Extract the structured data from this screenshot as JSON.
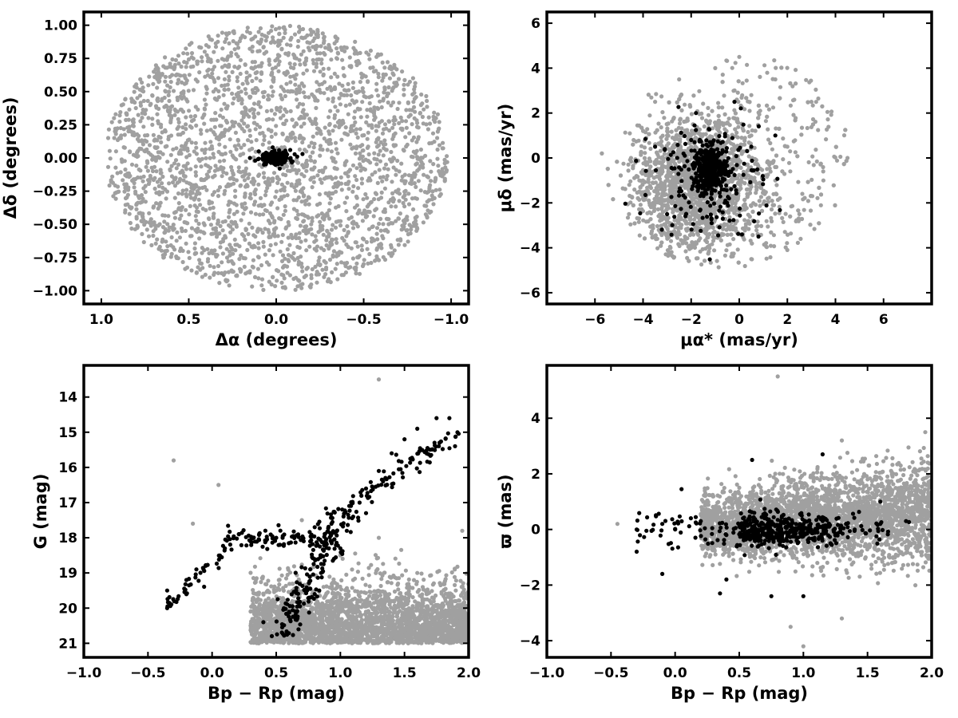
{
  "colors": {
    "field": "#a0a0a0",
    "members": "#000000",
    "frame": "#000000"
  },
  "chart_data": [
    {
      "id": "pos",
      "type": "scatter",
      "xlabel": "Δα (degrees)",
      "ylabel": "Δδ (degrees)",
      "xlim": [
        1.1,
        -1.1
      ],
      "ylim": [
        -1.1,
        1.1
      ],
      "xticks": [
        1.0,
        0.5,
        0.0,
        -0.5,
        -1.0
      ],
      "xtick_labels": [
        "1.0",
        "0.5",
        "0.0",
        "−0.5",
        "−1.0"
      ],
      "yticks": [
        1.0,
        0.75,
        0.5,
        0.25,
        0.0,
        -0.25,
        -0.5,
        -0.75,
        -1.0
      ],
      "ytick_labels": [
        "1.00",
        "0.75",
        "0.50",
        "0.25",
        "0.00",
        "−0.25",
        "−0.50",
        "−0.75",
        "−1.00"
      ],
      "series": [
        {
          "points": [
            [
              0.92,
              0.22
            ],
            [
              0.85,
              -0.35
            ],
            [
              0.7,
              0.65
            ],
            [
              0.55,
              -0.7
            ],
            [
              0.4,
              0.85
            ],
            [
              0.3,
              -0.88
            ],
            [
              0.1,
              0.95
            ],
            [
              -0.15,
              -0.95
            ],
            [
              -0.35,
              0.9
            ],
            [
              -0.5,
              -0.8
            ],
            [
              -0.65,
              0.6
            ],
            [
              -0.8,
              -0.5
            ],
            [
              -0.92,
              0.15
            ],
            [
              -0.95,
              -0.1
            ],
            [
              0.6,
              0.3
            ],
            [
              0.45,
              -0.25
            ],
            [
              0.2,
              0.5
            ],
            [
              -0.2,
              -0.5
            ],
            [
              -0.45,
              0.35
            ],
            [
              -0.6,
              -0.3
            ],
            [
              0.75,
              0.05
            ],
            [
              -0.75,
              0.1
            ],
            [
              0.15,
              -0.3
            ],
            [
              -0.3,
              0.2
            ]
          ]
        },
        {
          "points": [
            [
              0.0,
              0.0
            ],
            [
              0.05,
              0.02
            ],
            [
              -0.04,
              -0.03
            ],
            [
              0.1,
              0.05
            ],
            [
              -0.08,
              0.06
            ],
            [
              0.07,
              -0.05
            ],
            [
              0.12,
              -0.02
            ],
            [
              -0.12,
              0.01
            ],
            [
              0.02,
              0.08
            ],
            [
              -0.02,
              -0.08
            ],
            [
              0.15,
              0.0
            ],
            [
              -0.15,
              0.03
            ]
          ]
        }
      ]
    },
    {
      "id": "pm",
      "type": "scatter",
      "xlabel": "μα* (mas/yr)",
      "ylabel": "μδ (mas/yr)",
      "xlim": [
        -8,
        8
      ],
      "ylim": [
        -6.5,
        6.5
      ],
      "xticks": [
        -6,
        -4,
        -2,
        0,
        2,
        4,
        6
      ],
      "xtick_labels": [
        "−6",
        "−4",
        "−2",
        "0",
        "2",
        "4",
        "6"
      ],
      "yticks": [
        6,
        4,
        2,
        0,
        -2,
        -4,
        -6
      ],
      "ytick_labels": [
        "6",
        "4",
        "2",
        "0",
        "−2",
        "−4",
        "−6"
      ],
      "series": [
        {
          "points": [
            [
              -4.5,
              0.0
            ],
            [
              -4.0,
              -1.8
            ],
            [
              -3.5,
              2.5
            ],
            [
              -3.0,
              -3.5
            ],
            [
              -2.5,
              3.5
            ],
            [
              -2.0,
              -4.0
            ],
            [
              -1.0,
              4.0
            ],
            [
              0.0,
              4.5
            ],
            [
              0.5,
              -4.5
            ],
            [
              1.5,
              3.5
            ],
            [
              2.5,
              -2.5
            ],
            [
              3.0,
              2.5
            ],
            [
              3.5,
              -1.0
            ],
            [
              4.5,
              0.0
            ],
            [
              -2.0,
              0.5
            ],
            [
              0.5,
              1.0
            ],
            [
              1.5,
              -1.0
            ],
            [
              -3.0,
              1.0
            ],
            [
              2.0,
              0.5
            ],
            [
              -1.0,
              -2.5
            ]
          ]
        },
        {
          "points": [
            [
              -1.2,
              -0.5
            ],
            [
              -1.0,
              -0.3
            ],
            [
              -1.5,
              -0.7
            ],
            [
              -0.8,
              -0.6
            ],
            [
              -1.3,
              0.2
            ],
            [
              -1.1,
              -1.2
            ],
            [
              -2.0,
              0.8
            ],
            [
              -0.5,
              -2.0
            ],
            [
              -2.5,
              -1.5
            ],
            [
              0.5,
              0.5
            ],
            [
              -3.0,
              -2.5
            ],
            [
              1.5,
              1.0
            ],
            [
              -1.8,
              2.0
            ],
            [
              -0.2,
              2.5
            ],
            [
              -3.5,
              0.5
            ],
            [
              0.8,
              -3.5
            ]
          ]
        }
      ]
    },
    {
      "id": "cmd",
      "type": "scatter",
      "xlabel": "Bp − Rp (mag)",
      "ylabel": "G (mag)",
      "xlim": [
        -1.0,
        2.0
      ],
      "ylim": [
        21.4,
        13.1
      ],
      "xticks": [
        -1.0,
        -0.5,
        0.0,
        0.5,
        1.0,
        1.5,
        2.0
      ],
      "xtick_labels": [
        "−1.0",
        "−0.5",
        "0.0",
        "0.5",
        "1.0",
        "1.5",
        "2.0"
      ],
      "yticks": [
        21,
        20,
        19,
        18,
        17,
        16,
        15,
        14
      ],
      "ytick_labels": [
        "21",
        "20",
        "19",
        "18",
        "17",
        "16",
        "15",
        "14"
      ],
      "series": [
        {
          "points": [
            [
              0.6,
              20.5
            ],
            [
              0.9,
              20.0
            ],
            [
              1.2,
              20.6
            ],
            [
              1.5,
              20.3
            ],
            [
              1.8,
              20.5
            ],
            [
              1.9,
              19.5
            ],
            [
              1.4,
              19.8
            ],
            [
              1.1,
              19.2
            ],
            [
              0.8,
              18.8
            ],
            [
              0.5,
              19.5
            ],
            [
              0.3,
              20.5
            ],
            [
              1.6,
              19.0
            ],
            [
              1.0,
              18.5
            ],
            [
              0.7,
              17.5
            ],
            [
              1.3,
              13.5
            ],
            [
              -0.3,
              15.8
            ],
            [
              0.05,
              16.5
            ],
            [
              1.95,
              17.8
            ],
            [
              -0.15,
              17.6
            ],
            [
              1.3,
              18.0
            ]
          ]
        },
        {
          "points": [
            [
              0.4,
              20.4
            ],
            [
              0.6,
              20.1
            ],
            [
              0.8,
              19.6
            ],
            [
              0.85,
              19.0
            ],
            [
              0.95,
              18.6
            ],
            [
              1.0,
              18.3
            ],
            [
              1.05,
              17.8
            ],
            [
              1.1,
              17.4
            ],
            [
              1.15,
              17.0
            ],
            [
              1.2,
              16.6
            ],
            [
              1.3,
              16.1
            ],
            [
              1.4,
              15.6
            ],
            [
              1.5,
              15.2
            ],
            [
              1.6,
              14.9
            ],
            [
              1.75,
              14.6
            ],
            [
              1.85,
              14.6
            ],
            [
              0.5,
              18.0
            ],
            [
              0.3,
              18.1
            ],
            [
              0.1,
              18.3
            ],
            [
              -0.05,
              18.8
            ],
            [
              -0.2,
              19.2
            ],
            [
              -0.35,
              19.5
            ],
            [
              -0.35,
              20.0
            ],
            [
              0.55,
              18.0
            ],
            [
              0.8,
              17.7
            ],
            [
              1.2,
              17.3
            ]
          ]
        }
      ]
    },
    {
      "id": "plx",
      "type": "scatter",
      "xlabel": "Bp − Rp (mag)",
      "ylabel": "ϖ (mas)",
      "xlim": [
        -1.0,
        2.0
      ],
      "ylim": [
        -4.6,
        5.9
      ],
      "xticks": [
        -1.0,
        -0.5,
        0.0,
        0.5,
        1.0,
        1.5,
        2.0
      ],
      "xtick_labels": [
        "−1.0",
        "−0.5",
        "0.0",
        "0.5",
        "1.0",
        "1.5",
        "2.0"
      ],
      "yticks": [
        4,
        2,
        0,
        -2,
        -4
      ],
      "ytick_labels": [
        "4",
        "2",
        "0",
        "−2",
        "−4"
      ],
      "series": [
        {
          "points": [
            [
              0.2,
              0.0
            ],
            [
              0.4,
              0.3
            ],
            [
              0.6,
              -0.3
            ],
            [
              0.8,
              0.5
            ],
            [
              1.0,
              -0.4
            ],
            [
              1.2,
              0.2
            ],
            [
              1.4,
              0.3
            ],
            [
              1.6,
              0.4
            ],
            [
              1.8,
              0.5
            ],
            [
              1.95,
              0.6
            ],
            [
              0.8,
              5.5
            ],
            [
              1.0,
              -4.2
            ],
            [
              1.3,
              3.2
            ],
            [
              1.3,
              -3.2
            ],
            [
              1.95,
              3.5
            ],
            [
              -0.45,
              0.2
            ],
            [
              0.9,
              -3.5
            ],
            [
              1.5,
              1.8
            ],
            [
              1.7,
              -1.0
            ],
            [
              0.5,
              1.5
            ]
          ]
        },
        {
          "points": [
            [
              -0.3,
              0.0
            ],
            [
              -0.1,
              0.2
            ],
            [
              0.0,
              0.0
            ],
            [
              0.2,
              0.3
            ],
            [
              0.4,
              -0.2
            ],
            [
              0.6,
              0.1
            ],
            [
              0.8,
              0.0
            ],
            [
              1.0,
              -0.1
            ],
            [
              1.2,
              0.1
            ],
            [
              1.4,
              0.0
            ],
            [
              1.6,
              0.2
            ],
            [
              1.8,
              0.3
            ],
            [
              0.6,
              2.5
            ],
            [
              0.4,
              -1.8
            ],
            [
              0.35,
              -2.3
            ],
            [
              0.75,
              -2.4
            ],
            [
              1.0,
              -2.4
            ],
            [
              1.15,
              2.7
            ],
            [
              1.6,
              1.0
            ],
            [
              -0.1,
              -1.6
            ],
            [
              -0.3,
              -0.8
            ],
            [
              0.05,
              1.45
            ]
          ]
        }
      ]
    }
  ]
}
